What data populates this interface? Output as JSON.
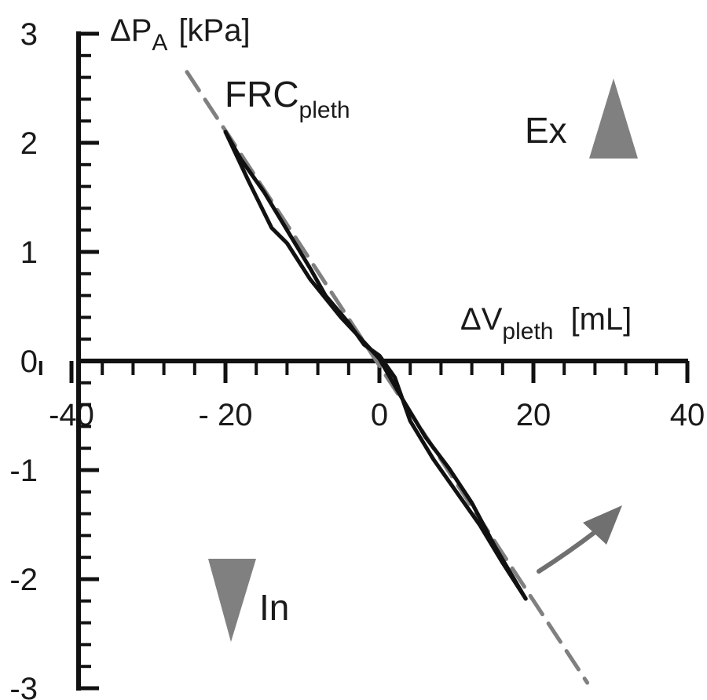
{
  "chart_data": {
    "type": "line",
    "title": "",
    "xlabel": {
      "main": "ΔV",
      "sub": "pleth",
      "unit": "[mL]"
    },
    "ylabel": {
      "main": "ΔP",
      "sub": "A",
      "unit": "[kPa]"
    },
    "xlim": [
      -48,
      40
    ],
    "ylim": [
      -3,
      3
    ],
    "x_ticks": [
      -40,
      -20,
      0,
      20,
      40
    ],
    "x_tick_labels": [
      "-40",
      "- 20",
      "0",
      "20",
      "40"
    ],
    "y_ticks": [
      3,
      2,
      1,
      0,
      -1,
      -2,
      -3
    ],
    "y_tick_labels": [
      "3",
      "2",
      "1",
      "0",
      "-1",
      "-2",
      "-3"
    ],
    "grid": false,
    "series": [
      {
        "name": "",
        "style": "dashed",
        "color": "#808080",
        "x": [
          -25,
          27
        ],
        "y": [
          2.65,
          -2.95
        ]
      },
      {
        "name": "",
        "style": "solid",
        "color": "#111111",
        "x": [
          -20,
          -17,
          -14,
          -12,
          -9,
          -5,
          -3,
          0,
          3,
          6,
          9,
          12,
          15,
          19
        ],
        "y": [
          2.1,
          1.65,
          1.22,
          1.08,
          0.75,
          0.4,
          0.25,
          0.02,
          -0.35,
          -0.7,
          -0.98,
          -1.3,
          -1.7,
          -2.18
        ]
      },
      {
        "name": "",
        "style": "solid",
        "color": "#111111",
        "x": [
          19,
          16,
          13,
          10,
          7,
          4,
          2,
          0,
          -2,
          -4,
          -7,
          -9,
          -12,
          -15,
          -18,
          -20
        ],
        "y": [
          -2.18,
          -1.85,
          -1.5,
          -1.2,
          -0.9,
          -0.55,
          -0.15,
          0.05,
          0.15,
          0.35,
          0.6,
          0.85,
          1.2,
          1.55,
          1.85,
          2.1
        ]
      }
    ],
    "annotations": {
      "frc": {
        "main": "FRC",
        "sub": "pleth",
        "x": -20,
        "y": 2.4
      },
      "ex": {
        "label": "Ex",
        "color": "#808080",
        "x": 28,
        "y": 2.0
      },
      "in": {
        "label": "In",
        "color": "#808080",
        "x": -15,
        "y": -2.1
      }
    }
  }
}
